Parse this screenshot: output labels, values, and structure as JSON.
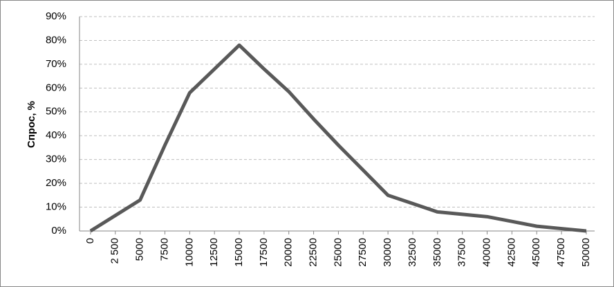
{
  "chart_data": {
    "type": "line",
    "y_label": "Спрос, %",
    "categories": [
      "0",
      "2 500",
      "5000",
      "7500",
      "10000",
      "12500",
      "15000",
      "17500",
      "20000",
      "22500",
      "25000",
      "27500",
      "30000",
      "32500",
      "35000",
      "37500",
      "40000",
      "42500",
      "45000",
      "47500",
      "50000"
    ],
    "series": [
      {
        "color": "#595959",
        "values": [
          0,
          6.5,
          13,
          36,
          58,
          68,
          78,
          68,
          58.5,
          47,
          36,
          25.5,
          15,
          11.5,
          8,
          7,
          6,
          4,
          2,
          1,
          0
        ]
      }
    ],
    "ylim": [
      0,
      90
    ],
    "yticks": [
      {
        "value": 0,
        "label": "0%"
      },
      {
        "value": 10,
        "label": "10%"
      },
      {
        "value": 20,
        "label": "20%"
      },
      {
        "value": 30,
        "label": "30%"
      },
      {
        "value": 40,
        "label": "40%"
      },
      {
        "value": 50,
        "label": "50%"
      },
      {
        "value": 60,
        "label": "60%"
      },
      {
        "value": 70,
        "label": "70%"
      },
      {
        "value": 80,
        "label": "80%"
      },
      {
        "value": 90,
        "label": "90%"
      }
    ],
    "grid": true
  }
}
